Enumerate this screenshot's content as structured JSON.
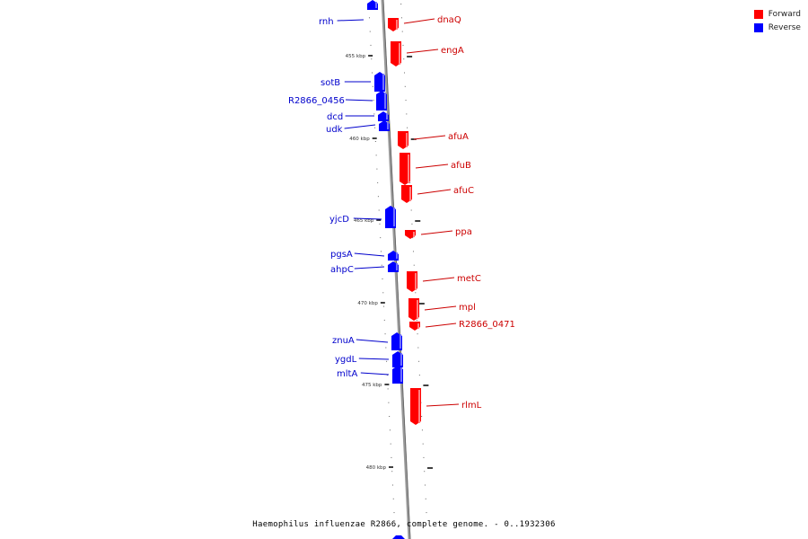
{
  "legend": {
    "forward_label": "Forward",
    "reverse_label": "Reverse",
    "forward_color": "#ff0000",
    "reverse_color": "#0000ff"
  },
  "caption": "Haemophilus influenzae R2866, complete genome. - 0..1932306",
  "ticks": [
    {
      "label": "455 kbp",
      "kbp": 455
    },
    {
      "label": "460 kbp",
      "kbp": 460
    },
    {
      "label": "465 kbp",
      "kbp": 465
    },
    {
      "label": "470 kbp",
      "kbp": 470
    },
    {
      "label": "475 kbp",
      "kbp": 475
    },
    {
      "label": "480 kbp",
      "kbp": 480
    }
  ],
  "genes": [
    {
      "name": "rnh",
      "strand": "reverse"
    },
    {
      "name": "dnaQ",
      "strand": "forward"
    },
    {
      "name": "engA",
      "strand": "forward"
    },
    {
      "name": "sotB",
      "strand": "reverse"
    },
    {
      "name": "R2866_0456",
      "strand": "reverse"
    },
    {
      "name": "dcd",
      "strand": "reverse"
    },
    {
      "name": "udk",
      "strand": "reverse"
    },
    {
      "name": "afuA",
      "strand": "forward"
    },
    {
      "name": "afuB",
      "strand": "forward"
    },
    {
      "name": "afuC",
      "strand": "forward"
    },
    {
      "name": "yjcD",
      "strand": "reverse"
    },
    {
      "name": "ppa",
      "strand": "forward"
    },
    {
      "name": "pgsA",
      "strand": "reverse"
    },
    {
      "name": "ahpC",
      "strand": "reverse"
    },
    {
      "name": "metC",
      "strand": "forward"
    },
    {
      "name": "mpl",
      "strand": "forward"
    },
    {
      "name": "R2866_0471",
      "strand": "forward"
    },
    {
      "name": "znuA",
      "strand": "reverse"
    },
    {
      "name": "ygdL",
      "strand": "reverse"
    },
    {
      "name": "mltA",
      "strand": "reverse"
    },
    {
      "name": "rlmL",
      "strand": "forward"
    }
  ]
}
